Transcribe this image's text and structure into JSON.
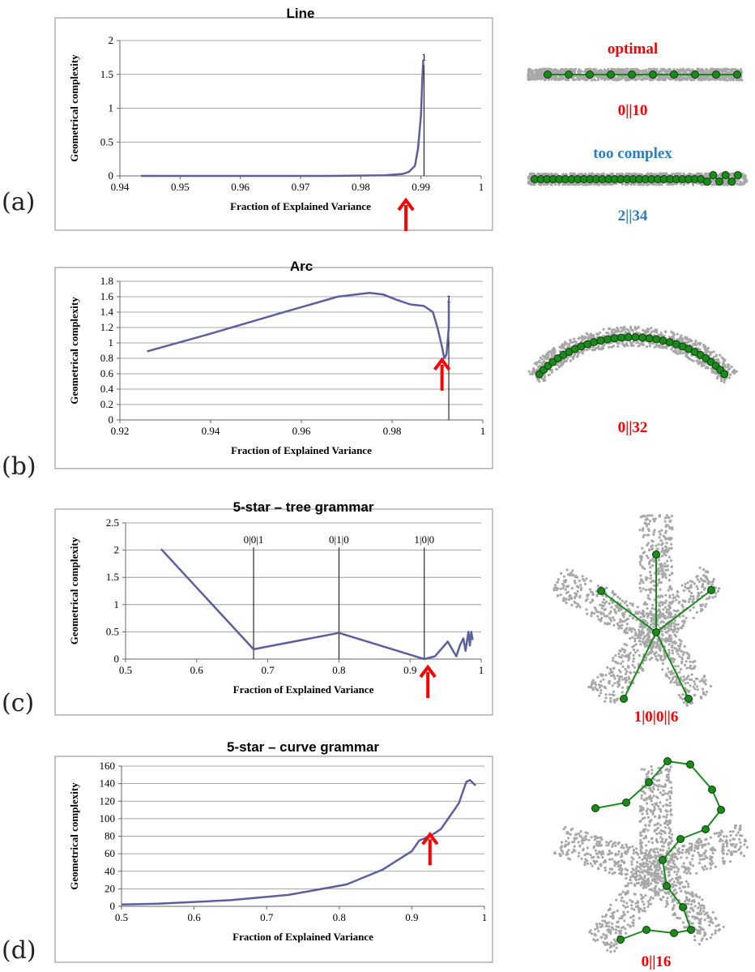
{
  "panels": [
    {
      "letter": "(a)",
      "overlay_labels": {
        "optimal": "optimal",
        "optimal_value": "0||10",
        "complex": "too complex",
        "complex_value": "2||34"
      }
    },
    {
      "letter": "(b)",
      "overlay_labels": {
        "value": "0||32"
      }
    },
    {
      "letter": "(c)",
      "overlay_labels": {
        "value": "1|0|0||6"
      }
    },
    {
      "letter": "(d)",
      "overlay_labels": {
        "value": "0||16"
      }
    }
  ],
  "colors": {
    "line": "#5b5fa0",
    "arrow": "#ff0000",
    "optimal": "#ff0000",
    "complex": "#2a7fc1",
    "node": "#1a8a1a",
    "cloud": "#a8a8a8"
  },
  "chart_data": [
    {
      "type": "line",
      "title": "Line",
      "xlabel": "Fraction of Explained Variance",
      "ylabel": "Geometrical complexity",
      "xlim": [
        0.94,
        1
      ],
      "ylim": [
        0,
        2
      ],
      "xticks": [
        "0.94",
        "0.95",
        "0.96",
        "0.97",
        "0.98",
        "0.99",
        "1"
      ],
      "xtick_values": [
        0.94,
        0.95,
        0.96,
        0.97,
        0.98,
        0.99,
        1
      ],
      "yticks": [
        "0",
        "0.5",
        "1",
        "1.5",
        "2"
      ],
      "ytick_values": [
        0,
        0.5,
        1,
        1.5,
        2
      ],
      "grid": true,
      "series": [
        {
          "x": [
            0.9435,
            0.96,
            0.975,
            0.984,
            0.987,
            0.988,
            0.989,
            0.9895,
            0.99,
            0.9902,
            0.9904
          ],
          "y": [
            0,
            0,
            0,
            0.01,
            0.03,
            0.06,
            0.15,
            0.4,
            0.9,
            1.4,
            1.72
          ]
        }
      ],
      "annotations": [
        {
          "x": 0.9905,
          "text": "1"
        }
      ],
      "arrow_x": 0.9875
    },
    {
      "type": "line",
      "title": "Arc",
      "xlabel": "Fraction of Explained Variance",
      "ylabel": "Geometrical complexity",
      "xlim": [
        0.92,
        1
      ],
      "ylim": [
        0,
        1.8
      ],
      "xticks": [
        "0.92",
        "0.94",
        "0.96",
        "0.98",
        "1"
      ],
      "xtick_values": [
        0.92,
        0.94,
        0.96,
        0.98,
        1
      ],
      "yticks": [
        "0",
        "0.2",
        "0.4",
        "0.6",
        "0.8",
        "1",
        "1.2",
        "1.4",
        "1.6",
        "1.8"
      ],
      "ytick_values": [
        0,
        0.2,
        0.4,
        0.6,
        0.8,
        1,
        1.2,
        1.4,
        1.6,
        1.8
      ],
      "grid": true,
      "series": [
        {
          "x": [
            0.926,
            0.94,
            0.955,
            0.968,
            0.975,
            0.978,
            0.981,
            0.984,
            0.987,
            0.989,
            0.99,
            0.991,
            0.9915,
            0.992,
            0.9925,
            0.9925
          ],
          "y": [
            0.89,
            1.12,
            1.38,
            1.6,
            1.65,
            1.63,
            1.56,
            1.5,
            1.48,
            1.4,
            1.2,
            0.95,
            0.8,
            0.85,
            1.2,
            1.56
          ]
        }
      ],
      "annotations": [
        {
          "x": 0.9925,
          "text": "1"
        }
      ],
      "arrow_x": 0.991
    },
    {
      "type": "line",
      "title": "5-star – tree grammar",
      "xlabel": "Fraction of Explained Variance",
      "ylabel": "Geometrical complexity",
      "xlim": [
        0.5,
        1
      ],
      "ylim": [
        0,
        2.5
      ],
      "xticks": [
        "0.5",
        "0.6",
        "0.7",
        "0.8",
        "0.9",
        "1"
      ],
      "xtick_values": [
        0.5,
        0.6,
        0.7,
        0.8,
        0.9,
        1
      ],
      "yticks": [
        "0",
        "0.5",
        "1",
        "1.5",
        "2",
        "2.5"
      ],
      "ytick_values": [
        0,
        0.5,
        1,
        1.5,
        2,
        2.5
      ],
      "grid": true,
      "series": [
        {
          "x": [
            0.55,
            0.68,
            0.8,
            0.92,
            0.935,
            0.953,
            0.965,
            0.97,
            0.975,
            0.978,
            0.982,
            0.984,
            0.986,
            0.988
          ],
          "y": [
            2.02,
            0.18,
            0.48,
            0.0,
            0.05,
            0.32,
            0.05,
            0.25,
            0.38,
            0.15,
            0.5,
            0.25,
            0.5,
            0.35
          ]
        }
      ],
      "annotations": [
        {
          "x": 0.68,
          "text": "0|0|1"
        },
        {
          "x": 0.8,
          "text": "0|1|0"
        },
        {
          "x": 0.92,
          "text": "1|0|0"
        }
      ],
      "arrow_x": 0.925
    },
    {
      "type": "line",
      "title": "5-star – curve grammar",
      "xlabel": "Fraction of Explained Variance",
      "ylabel": "Geometrical complexity",
      "xlim": [
        0.5,
        1
      ],
      "ylim": [
        0,
        160
      ],
      "xticks": [
        "0.5",
        "0.6",
        "0.7",
        "0.8",
        "0.9",
        "1"
      ],
      "xtick_values": [
        0.5,
        0.6,
        0.7,
        0.8,
        0.9,
        1
      ],
      "yticks": [
        "0",
        "20",
        "40",
        "60",
        "80",
        "100",
        "120",
        "140",
        "160"
      ],
      "ytick_values": [
        0,
        20,
        40,
        60,
        80,
        100,
        120,
        140,
        160
      ],
      "grid": true,
      "series": [
        {
          "x": [
            0.5,
            0.55,
            0.65,
            0.73,
            0.81,
            0.86,
            0.9,
            0.91,
            0.925,
            0.94,
            0.95,
            0.96,
            0.965,
            0.97,
            0.975,
            0.98,
            0.985,
            0.988
          ],
          "y": [
            2,
            3,
            7,
            13,
            25,
            42,
            63,
            75,
            80,
            88,
            100,
            112,
            118,
            130,
            142,
            144,
            140,
            138
          ]
        }
      ],
      "annotations": [],
      "arrow_x": 0.925
    }
  ]
}
